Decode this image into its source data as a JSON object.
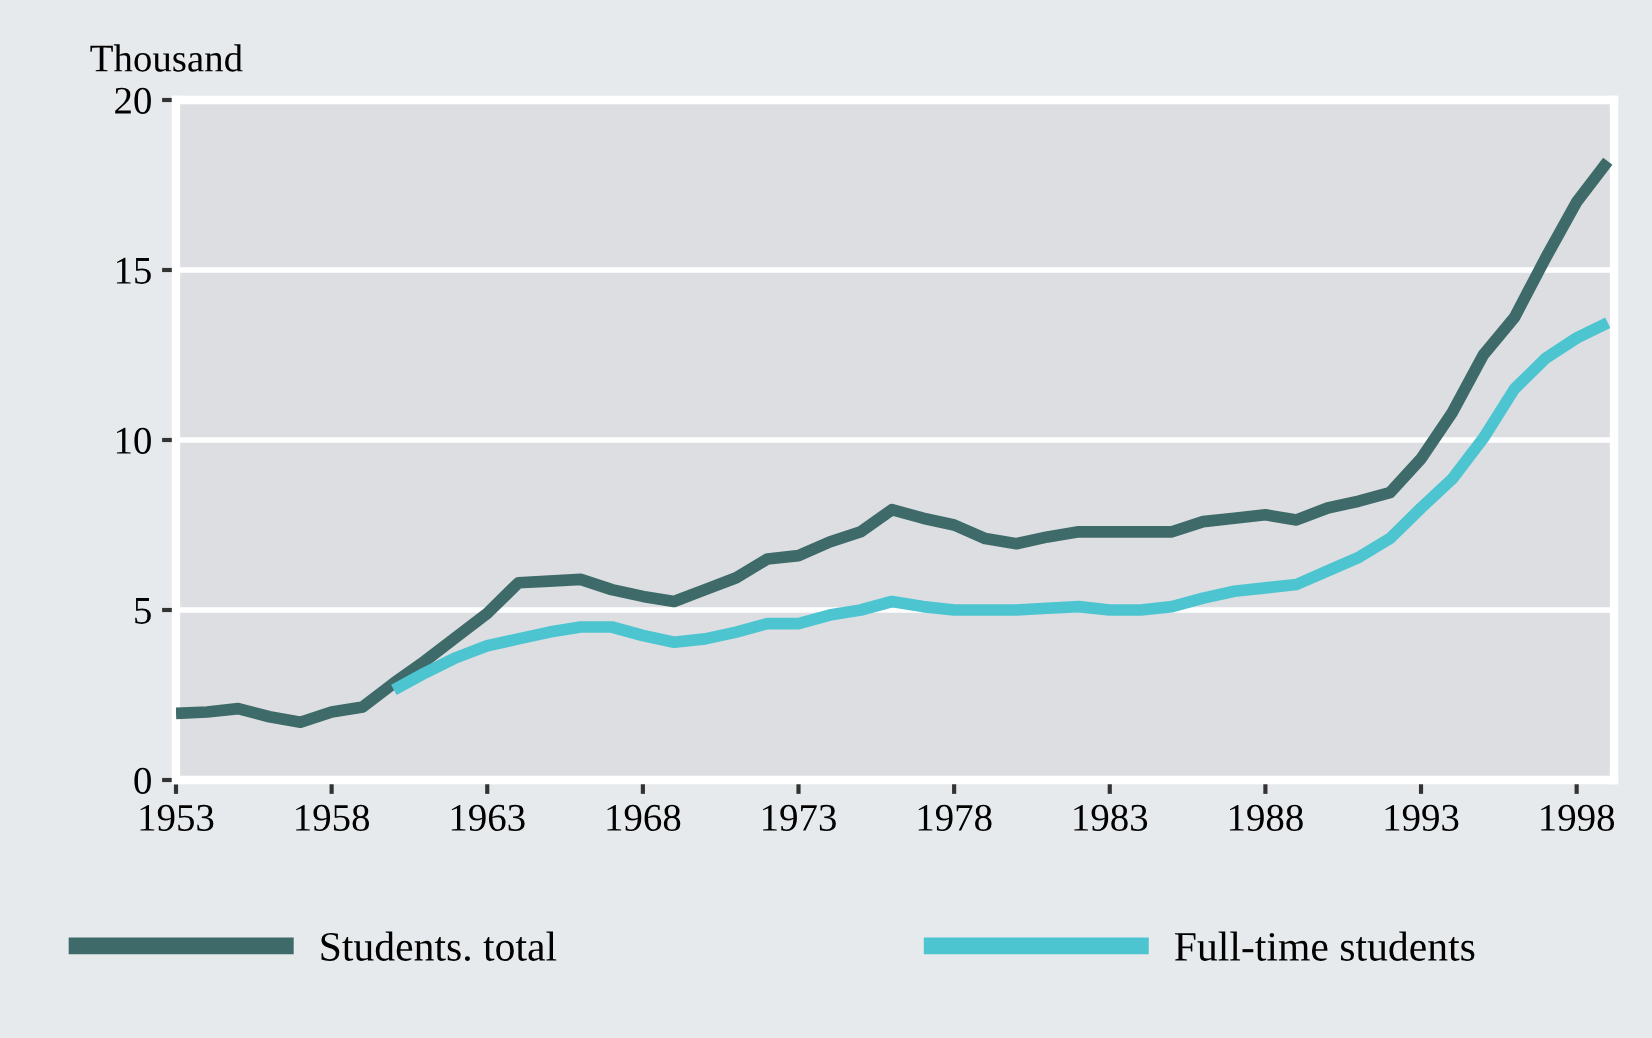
{
  "chart_data": {
    "type": "line",
    "ylabel": "Thousand",
    "x": [
      1953,
      1954,
      1955,
      1956,
      1957,
      1958,
      1959,
      1960,
      1961,
      1962,
      1963,
      1964,
      1965,
      1966,
      1967,
      1968,
      1969,
      1970,
      1971,
      1972,
      1973,
      1974,
      1975,
      1976,
      1977,
      1978,
      1979,
      1980,
      1981,
      1982,
      1983,
      1984,
      1985,
      1986,
      1987,
      1988,
      1989,
      1990,
      1991,
      1992,
      1993,
      1994,
      1995,
      1996,
      1997,
      1998,
      1999
    ],
    "series": [
      {
        "name": "Students. total",
        "color": "#3e6b69",
        "values": [
          1.96,
          2.0,
          2.1,
          1.86,
          1.7,
          2.0,
          2.15,
          2.85,
          3.5,
          4.2,
          4.9,
          5.8,
          5.85,
          5.9,
          5.6,
          5.4,
          5.25,
          5.6,
          5.95,
          6.5,
          6.6,
          7.0,
          7.3,
          7.95,
          7.7,
          7.5,
          7.1,
          6.95,
          7.15,
          7.3,
          7.3,
          7.3,
          7.3,
          7.6,
          7.7,
          7.8,
          7.65,
          8.0,
          8.2,
          8.45,
          9.45,
          10.8,
          12.5,
          13.6,
          15.35,
          17.0,
          18.2
        ]
      },
      {
        "name": "Full-time students",
        "color": "#4cc5d1",
        "values": [
          null,
          null,
          null,
          null,
          null,
          null,
          null,
          2.65,
          3.15,
          3.6,
          3.95,
          4.15,
          4.35,
          4.5,
          4.5,
          4.25,
          4.05,
          4.15,
          4.35,
          4.6,
          4.6,
          4.85,
          5.0,
          5.25,
          5.1,
          5.0,
          5.0,
          5.0,
          5.05,
          5.1,
          5.0,
          5.0,
          5.1,
          5.35,
          5.55,
          5.65,
          5.75,
          6.15,
          6.55,
          7.1,
          8.0,
          8.85,
          10.05,
          11.5,
          12.4,
          13.0,
          13.45
        ]
      }
    ],
    "xlim": [
      1953,
      1999.2
    ],
    "xticks": [
      1953,
      1958,
      1963,
      1968,
      1973,
      1978,
      1983,
      1988,
      1993,
      1998
    ],
    "ylim": [
      0,
      20
    ],
    "yticks": [
      0,
      5,
      10,
      15,
      20
    ],
    "grid": "y",
    "legend": "bottom",
    "line_style": "solid",
    "marker": "none"
  }
}
